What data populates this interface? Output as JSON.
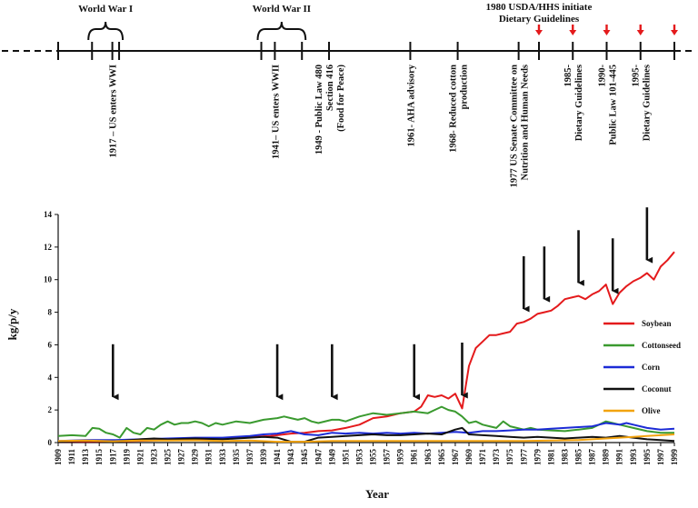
{
  "header_note": {
    "line1": "1980 USDA/HHS initiate",
    "line2": "Dietary Guidelines"
  },
  "wars": [
    {
      "label": "World War I",
      "from": 1914,
      "to": 1918
    },
    {
      "label": "World War II",
      "from": 1939,
      "to": 1945
    }
  ],
  "timeline_events": [
    {
      "year": 1917,
      "lines": [
        "1917 – US enters WWI"
      ]
    },
    {
      "year": 1941,
      "lines": [
        "1941– US enters WWII"
      ]
    },
    {
      "year": 1949,
      "lines": [
        "1949 - Public Law 480",
        "Section 416",
        "(Food for Peace)"
      ]
    },
    {
      "year": 1961,
      "lines": [
        "1961- AHA advisory"
      ]
    },
    {
      "year": 1968,
      "lines": [
        "1968- Reduced cotton",
        "production"
      ]
    },
    {
      "year": 1977,
      "lines": [
        "1977 US Senate Committee on",
        "Nutrition and Human Needs"
      ]
    },
    {
      "year": 1985,
      "lines": [
        "1985-",
        "Dietary Guidelines"
      ]
    },
    {
      "year": 1990,
      "lines": [
        "1990-",
        "Public Law 101-445"
      ]
    },
    {
      "year": 1995,
      "lines": [
        "1995-",
        "Dietary Guidelines"
      ]
    }
  ],
  "red_arrow_years": [
    1980,
    1985,
    1990,
    1995,
    2000
  ],
  "chart_data": {
    "type": "line",
    "title": "",
    "xlabel": "Year",
    "ylabel": "kg/p/y",
    "xlim": [
      1909,
      1999
    ],
    "ylim": [
      0,
      14
    ],
    "yticks": [
      0,
      2,
      4,
      6,
      8,
      10,
      12,
      14
    ],
    "xticks": [
      1909,
      1911,
      1913,
      1915,
      1917,
      1919,
      1921,
      1923,
      1925,
      1927,
      1929,
      1931,
      1933,
      1935,
      1937,
      1939,
      1941,
      1943,
      1945,
      1947,
      1949,
      1951,
      1953,
      1955,
      1957,
      1959,
      1961,
      1963,
      1965,
      1967,
      1969,
      1971,
      1973,
      1975,
      1977,
      1979,
      1981,
      1983,
      1985,
      1987,
      1989,
      1991,
      1993,
      1995,
      1997,
      1999
    ],
    "arrow_years": [
      1917,
      1941,
      1949,
      1961,
      1968,
      1977,
      1980,
      1985,
      1990,
      1995
    ],
    "legend_position": "right",
    "series": [
      {
        "name": "Soybean",
        "color": "#e41a1c",
        "points": [
          [
            1909,
            0.05
          ],
          [
            1915,
            0.05
          ],
          [
            1920,
            0.1
          ],
          [
            1925,
            0.15
          ],
          [
            1930,
            0.2
          ],
          [
            1935,
            0.3
          ],
          [
            1940,
            0.4
          ],
          [
            1943,
            0.55
          ],
          [
            1945,
            0.6
          ],
          [
            1947,
            0.7
          ],
          [
            1949,
            0.75
          ],
          [
            1951,
            0.9
          ],
          [
            1953,
            1.1
          ],
          [
            1955,
            1.5
          ],
          [
            1957,
            1.6
          ],
          [
            1959,
            1.8
          ],
          [
            1961,
            1.9
          ],
          [
            1962,
            2.2
          ],
          [
            1963,
            2.9
          ],
          [
            1964,
            2.8
          ],
          [
            1965,
            2.9
          ],
          [
            1966,
            2.7
          ],
          [
            1967,
            3.0
          ],
          [
            1968,
            2.1
          ],
          [
            1969,
            4.7
          ],
          [
            1970,
            5.8
          ],
          [
            1971,
            6.2
          ],
          [
            1972,
            6.6
          ],
          [
            1973,
            6.6
          ],
          [
            1974,
            6.7
          ],
          [
            1975,
            6.8
          ],
          [
            1976,
            7.3
          ],
          [
            1977,
            7.4
          ],
          [
            1978,
            7.6
          ],
          [
            1979,
            7.9
          ],
          [
            1980,
            8.0
          ],
          [
            1981,
            8.1
          ],
          [
            1982,
            8.4
          ],
          [
            1983,
            8.8
          ],
          [
            1984,
            8.9
          ],
          [
            1985,
            9.0
          ],
          [
            1986,
            8.8
          ],
          [
            1987,
            9.1
          ],
          [
            1988,
            9.3
          ],
          [
            1989,
            9.7
          ],
          [
            1990,
            8.5
          ],
          [
            1991,
            9.2
          ],
          [
            1992,
            9.6
          ],
          [
            1993,
            9.9
          ],
          [
            1994,
            10.1
          ],
          [
            1995,
            10.4
          ],
          [
            1996,
            10.0
          ],
          [
            1997,
            10.8
          ],
          [
            1998,
            11.2
          ],
          [
            1999,
            11.7
          ]
        ]
      },
      {
        "name": "Cottonseed",
        "color": "#3a9a2f",
        "points": [
          [
            1909,
            0.4
          ],
          [
            1911,
            0.45
          ],
          [
            1913,
            0.4
          ],
          [
            1914,
            0.9
          ],
          [
            1915,
            0.85
          ],
          [
            1916,
            0.6
          ],
          [
            1917,
            0.5
          ],
          [
            1918,
            0.3
          ],
          [
            1919,
            0.9
          ],
          [
            1920,
            0.6
          ],
          [
            1921,
            0.5
          ],
          [
            1922,
            0.9
          ],
          [
            1923,
            0.8
          ],
          [
            1924,
            1.1
          ],
          [
            1925,
            1.3
          ],
          [
            1926,
            1.1
          ],
          [
            1927,
            1.2
          ],
          [
            1928,
            1.2
          ],
          [
            1929,
            1.3
          ],
          [
            1930,
            1.2
          ],
          [
            1931,
            1.0
          ],
          [
            1932,
            1.2
          ],
          [
            1933,
            1.1
          ],
          [
            1935,
            1.3
          ],
          [
            1937,
            1.2
          ],
          [
            1939,
            1.4
          ],
          [
            1941,
            1.5
          ],
          [
            1942,
            1.6
          ],
          [
            1943,
            1.5
          ],
          [
            1944,
            1.4
          ],
          [
            1945,
            1.5
          ],
          [
            1946,
            1.3
          ],
          [
            1947,
            1.2
          ],
          [
            1949,
            1.4
          ],
          [
            1950,
            1.4
          ],
          [
            1951,
            1.3
          ],
          [
            1953,
            1.6
          ],
          [
            1955,
            1.8
          ],
          [
            1957,
            1.7
          ],
          [
            1959,
            1.8
          ],
          [
            1961,
            1.9
          ],
          [
            1963,
            1.8
          ],
          [
            1964,
            2.0
          ],
          [
            1965,
            2.2
          ],
          [
            1966,
            2.0
          ],
          [
            1967,
            1.9
          ],
          [
            1968,
            1.6
          ],
          [
            1969,
            1.2
          ],
          [
            1970,
            1.3
          ],
          [
            1971,
            1.1
          ],
          [
            1972,
            1.0
          ],
          [
            1973,
            0.9
          ],
          [
            1974,
            1.3
          ],
          [
            1975,
            1.0
          ],
          [
            1976,
            0.9
          ],
          [
            1977,
            0.8
          ],
          [
            1978,
            0.9
          ],
          [
            1979,
            0.8
          ],
          [
            1981,
            0.75
          ],
          [
            1983,
            0.7
          ],
          [
            1985,
            0.8
          ],
          [
            1987,
            0.9
          ],
          [
            1988,
            1.1
          ],
          [
            1989,
            1.3
          ],
          [
            1990,
            1.2
          ],
          [
            1991,
            1.1
          ],
          [
            1993,
            0.9
          ],
          [
            1995,
            0.7
          ],
          [
            1997,
            0.6
          ],
          [
            1999,
            0.6
          ]
        ]
      },
      {
        "name": "Corn",
        "color": "#1c2bd6",
        "points": [
          [
            1909,
            0.1
          ],
          [
            1913,
            0.15
          ],
          [
            1917,
            0.15
          ],
          [
            1921,
            0.2
          ],
          [
            1925,
            0.25
          ],
          [
            1929,
            0.3
          ],
          [
            1933,
            0.3
          ],
          [
            1937,
            0.4
          ],
          [
            1939,
            0.5
          ],
          [
            1941,
            0.55
          ],
          [
            1943,
            0.7
          ],
          [
            1945,
            0.5
          ],
          [
            1947,
            0.45
          ],
          [
            1949,
            0.6
          ],
          [
            1951,
            0.55
          ],
          [
            1953,
            0.6
          ],
          [
            1955,
            0.55
          ],
          [
            1957,
            0.6
          ],
          [
            1959,
            0.55
          ],
          [
            1961,
            0.6
          ],
          [
            1963,
            0.55
          ],
          [
            1965,
            0.6
          ],
          [
            1967,
            0.65
          ],
          [
            1969,
            0.6
          ],
          [
            1971,
            0.7
          ],
          [
            1973,
            0.7
          ],
          [
            1975,
            0.75
          ],
          [
            1977,
            0.8
          ],
          [
            1979,
            0.8
          ],
          [
            1981,
            0.85
          ],
          [
            1983,
            0.9
          ],
          [
            1985,
            0.95
          ],
          [
            1987,
            1.0
          ],
          [
            1988,
            1.1
          ],
          [
            1989,
            1.2
          ],
          [
            1990,
            1.15
          ],
          [
            1991,
            1.1
          ],
          [
            1992,
            1.2
          ],
          [
            1993,
            1.1
          ],
          [
            1995,
            0.9
          ],
          [
            1997,
            0.8
          ],
          [
            1999,
            0.85
          ]
        ]
      },
      {
        "name": "Coconut",
        "color": "#111111",
        "points": [
          [
            1909,
            0.05
          ],
          [
            1913,
            0.1
          ],
          [
            1917,
            0.05
          ],
          [
            1921,
            0.2
          ],
          [
            1923,
            0.25
          ],
          [
            1925,
            0.2
          ],
          [
            1929,
            0.25
          ],
          [
            1933,
            0.2
          ],
          [
            1937,
            0.3
          ],
          [
            1939,
            0.35
          ],
          [
            1941,
            0.3
          ],
          [
            1943,
            0.05
          ],
          [
            1945,
            0.05
          ],
          [
            1947,
            0.3
          ],
          [
            1949,
            0.35
          ],
          [
            1951,
            0.4
          ],
          [
            1953,
            0.45
          ],
          [
            1955,
            0.5
          ],
          [
            1957,
            0.45
          ],
          [
            1959,
            0.45
          ],
          [
            1961,
            0.5
          ],
          [
            1963,
            0.55
          ],
          [
            1965,
            0.5
          ],
          [
            1967,
            0.8
          ],
          [
            1968,
            0.9
          ],
          [
            1969,
            0.5
          ],
          [
            1971,
            0.45
          ],
          [
            1973,
            0.4
          ],
          [
            1975,
            0.35
          ],
          [
            1977,
            0.3
          ],
          [
            1979,
            0.35
          ],
          [
            1981,
            0.3
          ],
          [
            1983,
            0.25
          ],
          [
            1985,
            0.3
          ],
          [
            1987,
            0.35
          ],
          [
            1989,
            0.3
          ],
          [
            1991,
            0.4
          ],
          [
            1993,
            0.3
          ],
          [
            1995,
            0.2
          ],
          [
            1997,
            0.15
          ],
          [
            1999,
            0.1
          ]
        ]
      },
      {
        "name": "Olive",
        "color": "#f2a30f",
        "points": [
          [
            1909,
            0.1
          ],
          [
            1913,
            0.12
          ],
          [
            1917,
            0.08
          ],
          [
            1921,
            0.12
          ],
          [
            1925,
            0.12
          ],
          [
            1929,
            0.14
          ],
          [
            1933,
            0.1
          ],
          [
            1937,
            0.12
          ],
          [
            1941,
            0.05
          ],
          [
            1945,
            0.05
          ],
          [
            1949,
            0.1
          ],
          [
            1953,
            0.1
          ],
          [
            1957,
            0.1
          ],
          [
            1961,
            0.1
          ],
          [
            1965,
            0.1
          ],
          [
            1969,
            0.1
          ],
          [
            1973,
            0.1
          ],
          [
            1977,
            0.1
          ],
          [
            1981,
            0.12
          ],
          [
            1985,
            0.15
          ],
          [
            1989,
            0.25
          ],
          [
            1991,
            0.3
          ],
          [
            1993,
            0.35
          ],
          [
            1995,
            0.4
          ],
          [
            1997,
            0.45
          ],
          [
            1999,
            0.5
          ]
        ]
      }
    ]
  }
}
